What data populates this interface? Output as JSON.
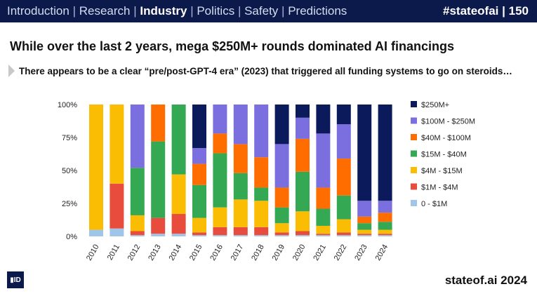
{
  "header": {
    "nav": [
      {
        "label": "Introduction",
        "active": false
      },
      {
        "label": "Research",
        "active": false
      },
      {
        "label": "Industry",
        "active": true
      },
      {
        "label": "Politics",
        "active": false
      },
      {
        "label": "Safety",
        "active": false
      },
      {
        "label": "Predictions",
        "active": false
      }
    ],
    "separator": "|",
    "hashtag": "#stateofai",
    "page_divider": "|",
    "page_number": "150"
  },
  "slide": {
    "title": "While over the last 2 years, mega $250M+ rounds dominated AI financings",
    "subtitle": "There appears to be a clear “pre/post-GPT-4 era” (2023) that triggered all funding systems to go on steroids…"
  },
  "footer": {
    "logo_text": "▮ID",
    "site": "stateof.ai 2024"
  },
  "colors": {
    "topbar": "#0b1a4a",
    "s0": "#9fc5e8",
    "s1": "#e74c3c",
    "s2": "#fbbc04",
    "s3": "#34a853",
    "s4": "#ff6d01",
    "s5": "#7b6fe0",
    "s6": "#0b1a5a"
  },
  "chart_data": {
    "type": "bar",
    "stacked": true,
    "percent": true,
    "categories": [
      "2010",
      "2011",
      "2012",
      "2013",
      "2014",
      "2015",
      "2016",
      "2017",
      "2018",
      "2019",
      "2020",
      "2021",
      "2022",
      "2023",
      "2024"
    ],
    "ylim": [
      0,
      100
    ],
    "yticks": [
      "0%",
      "25%",
      "50%",
      "75%",
      "100%"
    ],
    "legend_position": "right",
    "series": [
      {
        "name": "0 - $1M",
        "color": "#9fc5e8",
        "values": [
          5,
          6,
          1,
          2,
          2,
          1,
          1,
          1,
          1,
          1,
          1,
          1,
          1,
          1,
          1
        ]
      },
      {
        "name": "$1M - $4M",
        "color": "#e74c3c",
        "values": [
          0,
          34,
          3,
          12,
          15,
          2,
          6,
          6,
          6,
          2,
          3,
          1,
          2,
          1,
          1
        ]
      },
      {
        "name": "$4M - $15M",
        "color": "#fbbc04",
        "values": [
          95,
          60,
          12,
          0,
          30,
          11,
          15,
          21,
          20,
          7,
          15,
          6,
          10,
          3,
          3
        ]
      },
      {
        "name": "$15M - $40M",
        "color": "#34a853",
        "values": [
          0,
          0,
          36,
          58,
          53,
          25,
          41,
          20,
          10,
          12,
          30,
          13,
          18,
          5,
          6
        ]
      },
      {
        "name": "$40M - $100M",
        "color": "#ff6d01",
        "values": [
          0,
          0,
          0,
          28,
          0,
          16,
          15,
          22,
          23,
          15,
          25,
          16,
          28,
          5,
          7
        ]
      },
      {
        "name": "$100M - $250M",
        "color": "#7b6fe0",
        "values": [
          0,
          0,
          48,
          0,
          0,
          12,
          22,
          30,
          40,
          33,
          16,
          41,
          26,
          12,
          9
        ]
      },
      {
        "name": "$250M+",
        "color": "#0b1a5a",
        "values": [
          0,
          0,
          0,
          0,
          0,
          33,
          0,
          0,
          0,
          30,
          10,
          22,
          15,
          73,
          73
        ]
      }
    ]
  }
}
